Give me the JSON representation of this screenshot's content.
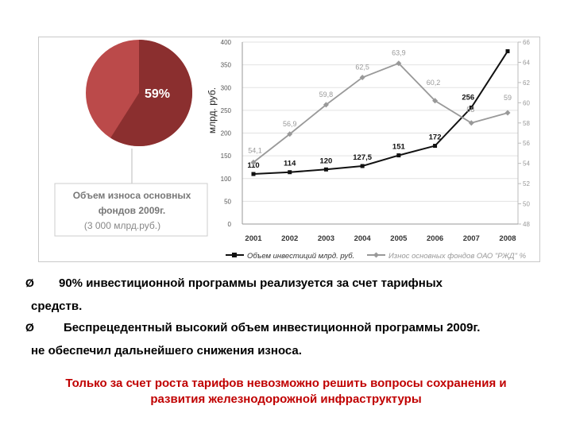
{
  "pie": {
    "percent_label": "59%",
    "share": 0.59,
    "caption_line1": "Объем износа основных",
    "caption_line2": "фондов 2009г.",
    "caption_line3": "(3 000 млрд.руб.)"
  },
  "chart_data": {
    "type": "line",
    "categories": [
      "2001",
      "2002",
      "2003",
      "2004",
      "2005",
      "2006",
      "2007",
      "2008"
    ],
    "ylabel": "млрд. руб.",
    "ylim_left": [
      0,
      400
    ],
    "yticks_left": [
      0,
      50,
      100,
      150,
      200,
      250,
      300,
      350,
      400
    ],
    "ylim_right": [
      48,
      66
    ],
    "yticks_right": [
      48,
      50,
      52,
      54,
      56,
      58,
      60,
      62,
      64,
      66
    ],
    "series": [
      {
        "name": "Объем инвестиций млрд. руб.",
        "axis": "left",
        "color": "#111111",
        "values": [
          110,
          114,
          120,
          127.5,
          151,
          172,
          256,
          380
        ],
        "labels": [
          "110",
          "114",
          "120",
          "127,5",
          "151",
          "172",
          "256",
          ""
        ]
      },
      {
        "name": "Износ основных фондов ОАО \"РЖД\" %",
        "axis": "right",
        "color": "#999999",
        "values": [
          54.1,
          56.9,
          59.8,
          62.5,
          63.9,
          60.2,
          58,
          59
        ],
        "labels": [
          "54,1",
          "56,9",
          "59,8",
          "62,5",
          "63,9",
          "60,2",
          "58",
          "59"
        ]
      }
    ]
  },
  "bullets": [
    {
      "arrow": "Ø",
      "line1": "90% инвестиционной программы реализуется за счет тарифных",
      "line2": "средств."
    },
    {
      "arrow": "Ø",
      "line1": "Беспрецедентный высокий объем инвестиционной программы 2009г.",
      "line2": "не обеспечил дальнейшего снижения износа."
    }
  ],
  "footer": {
    "line1": "Только за счет роста тарифов невозможно решить вопросы сохранения и",
    "line2": "развития железнодорожной инфраструктуры"
  }
}
